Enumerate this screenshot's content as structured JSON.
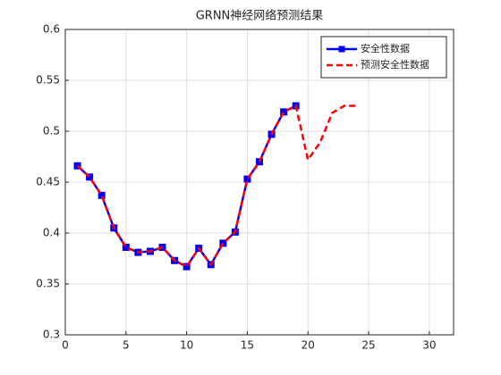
{
  "chart_data": {
    "type": "line",
    "title": "GRNN神经网络预测结果",
    "xlim": [
      0,
      32
    ],
    "xticks": [
      0,
      5,
      10,
      15,
      20,
      25,
      30
    ],
    "ylim": [
      0.3,
      0.6
    ],
    "yticks": [
      0.3,
      0.35,
      0.4,
      0.45,
      0.5,
      0.55,
      0.6
    ],
    "grid": true,
    "legend": "top-right",
    "series": [
      {
        "name": "安全性数据",
        "color": "#0000ff",
        "marker": "square",
        "dash": false,
        "x": [
          1,
          2,
          3,
          4,
          5,
          6,
          7,
          8,
          9,
          10,
          11,
          12,
          13,
          14,
          15,
          16,
          17,
          18,
          19
        ],
        "values": [
          0.466,
          0.455,
          0.437,
          0.405,
          0.386,
          0.381,
          0.382,
          0.386,
          0.373,
          0.367,
          0.385,
          0.369,
          0.39,
          0.401,
          0.453,
          0.47,
          0.497,
          0.519,
          0.525
        ]
      },
      {
        "name": "预测安全性数据",
        "color": "#ff0000",
        "marker": "none",
        "dash": true,
        "x": [
          1,
          2,
          3,
          4,
          5,
          6,
          7,
          8,
          9,
          10,
          11,
          12,
          13,
          14,
          15,
          16,
          17,
          18,
          19,
          20,
          21,
          22,
          23,
          24
        ],
        "values": [
          0.466,
          0.455,
          0.437,
          0.405,
          0.386,
          0.381,
          0.382,
          0.386,
          0.373,
          0.367,
          0.385,
          0.369,
          0.39,
          0.401,
          0.453,
          0.47,
          0.497,
          0.519,
          0.525,
          0.472,
          0.489,
          0.518,
          0.525,
          0.525
        ]
      }
    ]
  }
}
